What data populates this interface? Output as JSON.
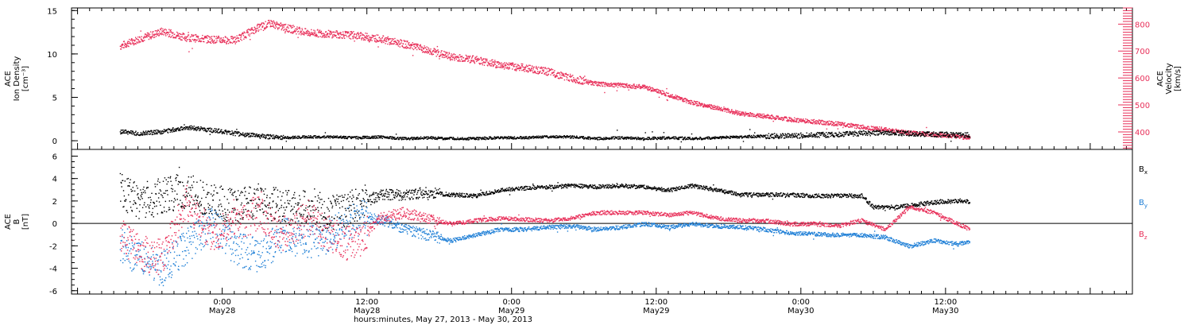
{
  "chart_data": [
    {
      "type": "scatter",
      "panel": "plasma",
      "ylabel": [
        "ACE",
        "Ion Density",
        "[cm⁻³]"
      ],
      "ylim": [
        -1,
        15.3
      ],
      "yticks": [
        0,
        5,
        10,
        15
      ],
      "y2label": [
        "ACE",
        "Velocity",
        "[km/s]"
      ],
      "y2lim": [
        335,
        860
      ],
      "y2ticks": [
        400,
        500,
        600,
        700,
        800
      ],
      "series": [
        {
          "name": "Velocity",
          "axis": "right",
          "color": "#e8305a",
          "x": [
            -8.5,
            -7,
            -5,
            -3,
            -1,
            1,
            3,
            4,
            5,
            7,
            9,
            11,
            13,
            15,
            17,
            19,
            21,
            23,
            25,
            27,
            29,
            30,
            31,
            33,
            35,
            37,
            39,
            41,
            43,
            45,
            47,
            49,
            51,
            53,
            55,
            57,
            59,
            61,
            62
          ],
          "y": [
            720,
            745,
            775,
            752,
            745,
            742,
            790,
            805,
            790,
            770,
            765,
            760,
            748,
            728,
            705,
            680,
            670,
            650,
            640,
            625,
            600,
            590,
            580,
            575,
            568,
            540,
            510,
            490,
            470,
            460,
            448,
            440,
            432,
            420,
            410,
            398,
            392,
            385,
            380
          ]
        },
        {
          "name": "Ion Density",
          "axis": "left",
          "color": "#000000",
          "x": [
            -8.5,
            -7,
            -5,
            -3,
            -1,
            1,
            3,
            5,
            7,
            9,
            11,
            13,
            15,
            17,
            19,
            21,
            23,
            25,
            27,
            29,
            31,
            33,
            35,
            37,
            39,
            41,
            43,
            45,
            47,
            49,
            51,
            53,
            55,
            57,
            59,
            61,
            62
          ],
          "y": [
            1.1,
            0.9,
            1.1,
            1.6,
            1.3,
            0.9,
            0.6,
            0.4,
            0.5,
            0.5,
            0.4,
            0.5,
            0.3,
            0.4,
            0.3,
            0.3,
            0.4,
            0.4,
            0.5,
            0.5,
            0.3,
            0.4,
            0.3,
            0.4,
            0.3,
            0.4,
            0.5,
            0.6,
            0.6,
            0.7,
            0.8,
            0.9,
            1.0,
            0.9,
            0.8,
            0.7,
            0.7
          ]
        }
      ]
    },
    {
      "type": "scatter",
      "panel": "magnetic",
      "ylabel": [
        "ACE",
        "B",
        "[nT]"
      ],
      "ylim": [
        -6.3,
        6.6
      ],
      "yticks": [
        -6,
        -4,
        -2,
        0,
        2,
        4,
        6
      ],
      "legend": [
        "Bx",
        "By",
        "Bz"
      ],
      "series": [
        {
          "name": "Bx",
          "color": "#000000",
          "x": [
            -8.5,
            -7,
            -5,
            -3,
            -1,
            1,
            3,
            5,
            7,
            9,
            11,
            13,
            15,
            17,
            19,
            21,
            23,
            25,
            27,
            29,
            31,
            33,
            35,
            37,
            39,
            41,
            43,
            45,
            47,
            49,
            51,
            52,
            53,
            54,
            56,
            58,
            60,
            62
          ],
          "y": [
            3.0,
            2.0,
            2.5,
            3.0,
            2.0,
            1.5,
            2.0,
            1.5,
            1.5,
            1.0,
            1.5,
            2.6,
            2.6,
            2.8,
            2.6,
            2.5,
            3.0,
            3.2,
            3.3,
            3.4,
            3.3,
            3.4,
            3.3,
            3.0,
            3.4,
            3.0,
            2.6,
            2.6,
            2.6,
            2.5,
            2.5,
            2.5,
            2.5,
            1.5,
            1.5,
            1.8,
            2.0,
            2.0
          ]
        },
        {
          "name": "By",
          "color": "#1f7fd6",
          "x": [
            -8.5,
            -7,
            -5,
            -3,
            -1,
            1,
            3,
            5,
            7,
            9,
            11,
            13,
            15,
            17,
            19,
            21,
            23,
            25,
            27,
            29,
            31,
            33,
            35,
            37,
            39,
            41,
            43,
            45,
            47,
            49,
            51,
            53,
            55,
            57,
            59,
            61,
            62
          ],
          "y": [
            -2.0,
            -3.0,
            -4.0,
            -2.0,
            0.0,
            -2.0,
            -3.0,
            -1.0,
            -1.5,
            -1.0,
            0.5,
            0.5,
            -0.5,
            -1.0,
            -1.5,
            -1.0,
            -0.5,
            -0.5,
            -0.3,
            -0.2,
            -0.5,
            -0.3,
            0.0,
            -0.3,
            0.0,
            -0.2,
            -0.3,
            -0.5,
            -0.8,
            -0.9,
            -1.0,
            -1.0,
            -1.2,
            -2.0,
            -1.5,
            -1.8,
            -1.6
          ]
        },
        {
          "name": "Bz",
          "color": "#e8305a",
          "x": [
            -8.5,
            -7,
            -5,
            -3,
            -1,
            1,
            3,
            5,
            7,
            9,
            11,
            13,
            15,
            17,
            19,
            21,
            23,
            25,
            27,
            29,
            31,
            33,
            35,
            37,
            39,
            41,
            43,
            45,
            47,
            49,
            51,
            53,
            55,
            57,
            59,
            61,
            62
          ],
          "y": [
            -1.0,
            -2.5,
            -3.0,
            2.0,
            -1.0,
            0.0,
            1.0,
            -1.0,
            0.5,
            -1.0,
            -2.0,
            0.5,
            1.0,
            0.5,
            0.0,
            0.3,
            0.5,
            0.4,
            0.3,
            0.5,
            1.0,
            1.0,
            1.0,
            0.8,
            1.0,
            0.5,
            0.3,
            0.3,
            0.0,
            0.0,
            -0.2,
            0.3,
            -0.5,
            1.5,
            1.0,
            0.0,
            -0.5
          ]
        }
      ]
    }
  ],
  "x_axis": {
    "xlim": [
      -12.5,
      75.5
    ],
    "ticks": [
      {
        "x": 0,
        "time": "0:00",
        "date": "May28"
      },
      {
        "x": 12,
        "time": "12:00",
        "date": "May28"
      },
      {
        "x": 24,
        "time": "0:00",
        "date": "May29"
      },
      {
        "x": 36,
        "time": "12:00",
        "date": "May29"
      },
      {
        "x": 48,
        "time": "0:00",
        "date": "May30"
      },
      {
        "x": 60,
        "time": "12:00",
        "date": "May30"
      }
    ],
    "label": "hours:minutes, May 27, 2013 - May 30, 2013"
  },
  "colors": {
    "black": "#000000",
    "red": "#e8305a",
    "blue": "#1f7fd6"
  }
}
